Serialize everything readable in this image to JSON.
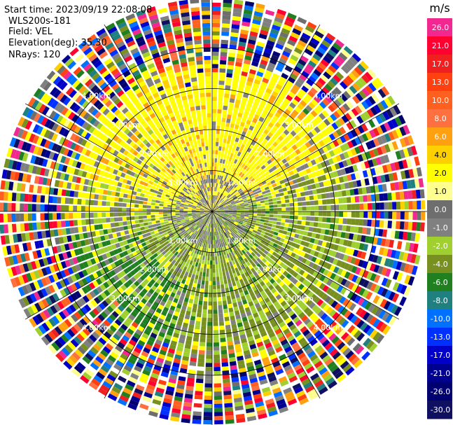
{
  "info": {
    "start_time": "Start time: 2023/09/19 22:08:08",
    "instrument": "WLS200s-181",
    "field": "Field: VEL",
    "elevation": "Elevation(deg): 35.30",
    "nrays": "NRays: 120"
  },
  "colorbar": {
    "unit": "m/s",
    "ticks": [
      "26.0",
      "21.0",
      "17.0",
      "13.0",
      "10.0",
      "8.0",
      "6.0",
      "4.0",
      "2.0",
      "1.0",
      "0.0",
      "-1.0",
      "-2.0",
      "-4.0",
      "-6.0",
      "-8.0",
      "-10.0",
      "-13.0",
      "-17.0",
      "-21.0",
      "-26.0",
      "-30.0"
    ],
    "colors": [
      "#f02890",
      "#ff0030",
      "#f02020",
      "#ff4010",
      "#ff6020",
      "#ff7040",
      "#ffa010",
      "#ffd000",
      "#ffff00",
      "#ffff90",
      "#6e6e6e",
      "#808080",
      "#a0d030",
      "#789020",
      "#208020",
      "#208080",
      "#0070ff",
      "#0030ff",
      "#0000c8",
      "#000090",
      "#000070",
      "#101060"
    ]
  },
  "chart_data": {
    "type": "ppi",
    "field": "VEL",
    "units": "m/s",
    "elevation_deg": 35.3,
    "n_rays": 120,
    "range_rings_km": [
      "1.00km",
      "2.00km",
      "3.00km",
      "4.00km"
    ],
    "ring_label_directions": [
      "NW",
      "NE",
      "SW",
      "SE"
    ],
    "color_scale_bounds": [
      26.0,
      21.0,
      17.0,
      13.0,
      10.0,
      8.0,
      6.0,
      4.0,
      2.0,
      1.0,
      0.0,
      -1.0,
      -2.0,
      -4.0,
      -6.0,
      -8.0,
      -10.0,
      -13.0,
      -17.0,
      -21.0,
      -26.0,
      -30.0
    ],
    "max_range_km": 5.2
  }
}
